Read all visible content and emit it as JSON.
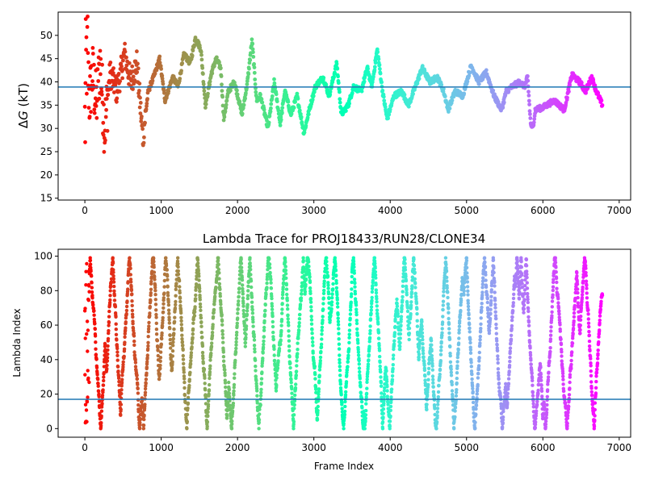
{
  "chart_data": [
    {
      "type": "scatter",
      "title": "",
      "xlabel": "",
      "ylabel": "ΔG (kT)",
      "ylabel_delta": "Δ",
      "ylabel_g": "G",
      "ylabel_unit": " (kT)",
      "xlim": [
        -350,
        7150
      ],
      "ylim": [
        14.6,
        55
      ],
      "xticks": [
        0,
        1000,
        2000,
        3000,
        4000,
        5000,
        6000,
        7000
      ],
      "xtick_labels": [
        "0",
        "1000",
        "2000",
        "3000",
        "4000",
        "5000",
        "6000",
        "7000"
      ],
      "yticks": [
        15,
        20,
        25,
        30,
        35,
        40,
        45,
        50
      ],
      "ytick_labels": [
        "15",
        "20",
        "25",
        "30",
        "35",
        "40",
        "45",
        "50"
      ],
      "hline": 38.9,
      "hline_color": "#1f77b4",
      "colormap": "rainbow (red at frame 0 → violet at last frame)",
      "grid": false,
      "x_range": [
        0,
        6780
      ],
      "trace_anchors": [
        [
          0,
          30
        ],
        [
          25,
          48
        ],
        [
          60,
          36
        ],
        [
          100,
          42
        ],
        [
          150,
          35
        ],
        [
          200,
          44
        ],
        [
          260,
          30
        ],
        [
          330,
          42
        ],
        [
          420,
          38
        ],
        [
          520,
          46
        ],
        [
          600,
          40
        ],
        [
          680,
          44
        ],
        [
          760,
          28
        ],
        [
          830,
          38
        ],
        [
          900,
          41
        ],
        [
          980,
          45
        ],
        [
          1050,
          36
        ],
        [
          1150,
          41
        ],
        [
          1220,
          39
        ],
        [
          1300,
          46
        ],
        [
          1380,
          44
        ],
        [
          1450,
          49.5
        ],
        [
          1520,
          47
        ],
        [
          1580,
          35
        ],
        [
          1660,
          42
        ],
        [
          1720,
          45
        ],
        [
          1780,
          43
        ],
        [
          1820,
          32
        ],
        [
          1880,
          38
        ],
        [
          1960,
          40
        ],
        [
          2060,
          33
        ],
        [
          2130,
          40
        ],
        [
          2190,
          49
        ],
        [
          2250,
          36
        ],
        [
          2300,
          37
        ],
        [
          2400,
          30
        ],
        [
          2480,
          40
        ],
        [
          2560,
          31
        ],
        [
          2620,
          38
        ],
        [
          2700,
          33
        ],
        [
          2780,
          37
        ],
        [
          2870,
          29
        ],
        [
          2940,
          34
        ],
        [
          3020,
          39
        ],
        [
          3120,
          41
        ],
        [
          3200,
          37
        ],
        [
          3300,
          44
        ],
        [
          3360,
          33
        ],
        [
          3450,
          35
        ],
        [
          3520,
          39
        ],
        [
          3620,
          38
        ],
        [
          3700,
          43
        ],
        [
          3760,
          39
        ],
        [
          3830,
          47
        ],
        [
          3900,
          38
        ],
        [
          3960,
          32
        ],
        [
          4050,
          37
        ],
        [
          4150,
          38
        ],
        [
          4240,
          35
        ],
        [
          4330,
          39
        ],
        [
          4420,
          43
        ],
        [
          4520,
          40
        ],
        [
          4620,
          41
        ],
        [
          4700,
          38
        ],
        [
          4760,
          34
        ],
        [
          4850,
          38
        ],
        [
          4950,
          37
        ],
        [
          5060,
          43.5
        ],
        [
          5160,
          40
        ],
        [
          5260,
          42
        ],
        [
          5360,
          37
        ],
        [
          5460,
          34
        ],
        [
          5520,
          38
        ],
        [
          5600,
          39
        ],
        [
          5700,
          40
        ],
        [
          5760,
          39
        ],
        [
          5800,
          41
        ],
        [
          5840,
          31
        ],
        [
          5870,
          30
        ],
        [
          5900,
          34
        ],
        [
          6000,
          34.5
        ],
        [
          6150,
          36
        ],
        [
          6280,
          34
        ],
        [
          6380,
          41.5
        ],
        [
          6480,
          40
        ],
        [
          6560,
          38
        ],
        [
          6640,
          41
        ],
        [
          6700,
          38
        ],
        [
          6780,
          35
        ]
      ]
    },
    {
      "type": "scatter",
      "title": "Lambda Trace for PROJ18433/RUN28/CLONE34",
      "xlabel": "Frame Index",
      "ylabel": "Lambda Index",
      "xlim": [
        -350,
        7150
      ],
      "ylim": [
        -5,
        104
      ],
      "xticks": [
        0,
        1000,
        2000,
        3000,
        4000,
        5000,
        6000,
        7000
      ],
      "xtick_labels": [
        "0",
        "1000",
        "2000",
        "3000",
        "4000",
        "5000",
        "6000",
        "7000"
      ],
      "yticks": [
        0,
        20,
        40,
        60,
        80,
        100
      ],
      "ytick_labels": [
        "0",
        "20",
        "40",
        "60",
        "80",
        "100"
      ],
      "hline": 17,
      "hline_color": "#1f77b4",
      "colormap": "rainbow (red at frame 0 → violet at last frame)",
      "grid": false,
      "x_range": [
        0,
        6780
      ],
      "lambda_range": [
        0,
        99
      ]
    }
  ]
}
